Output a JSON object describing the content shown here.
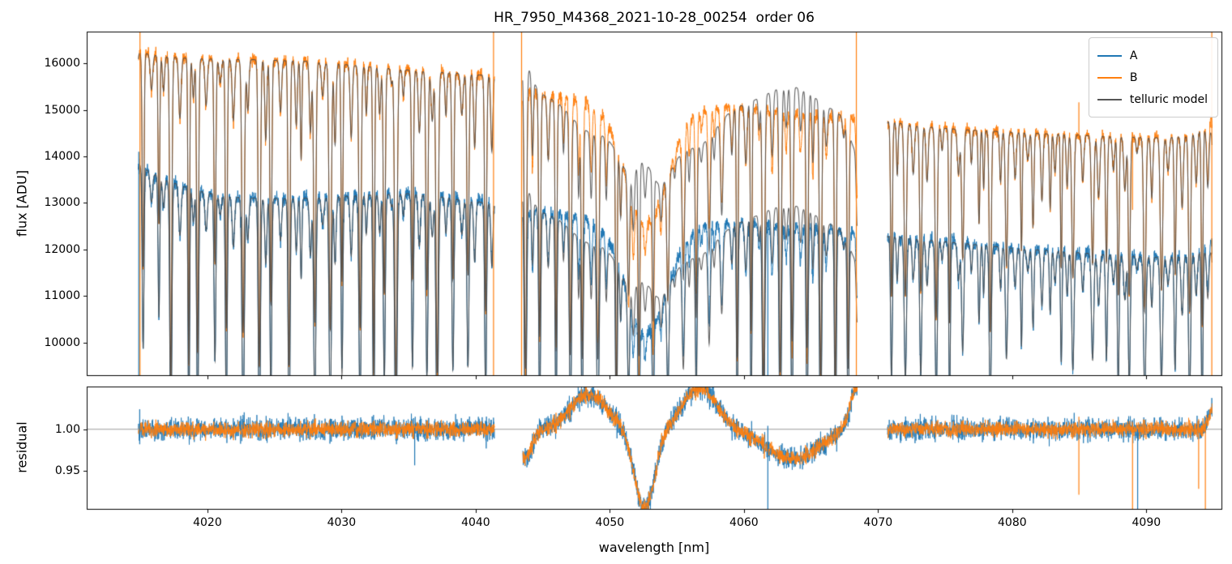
{
  "chart_data": {
    "type": "line",
    "title": "HR_7950_M4368_2021-10-28_00254  order 06",
    "xlabel": "wavelength [nm]",
    "ylabel_top": "flux [ADU]",
    "ylabel_bottom": "residual",
    "x_range": [
      4011.0,
      4095.6
    ],
    "top_ylim": [
      9300,
      16680
    ],
    "bottom_ylim": [
      0.905,
      1.051
    ],
    "x_ticks": [
      "4020",
      "4030",
      "4040",
      "4050",
      "4060",
      "4070",
      "4080",
      "4090"
    ],
    "top_yticks": [
      "10000",
      "11000",
      "12000",
      "13000",
      "14000",
      "15000",
      "16000"
    ],
    "bottom_yticks": [
      "0.95",
      "1.00"
    ],
    "legend": [
      {
        "label": "A",
        "color": "#1f77b4"
      },
      {
        "label": "B",
        "color": "#ff7f0e"
      },
      {
        "label": "telluric model",
        "color": "#555555"
      }
    ],
    "colors": {
      "a": "#1f77b4",
      "b": "#ff7f0e",
      "model": "#4d4d4d",
      "hline": "#9a9a9a"
    },
    "sample_step": 0.015,
    "segments": [
      {
        "x0": 4014.85,
        "x1": 4041.4
      },
      {
        "x0": 4043.5,
        "x1": 4068.45
      },
      {
        "x0": 4070.7,
        "x1": 4094.9
      }
    ],
    "continuum_b": [
      [
        4014.6,
        16250
      ],
      [
        4016.5,
        16150
      ],
      [
        4019,
        16100
      ],
      [
        4023,
        16080
      ],
      [
        4027,
        16050
      ],
      [
        4030,
        15980
      ],
      [
        4033,
        15900
      ],
      [
        4036,
        15830
      ],
      [
        4039,
        15780
      ],
      [
        4041.5,
        15720
      ],
      [
        4043.4,
        15420
      ],
      [
        4046,
        15280
      ],
      [
        4049,
        15170
      ],
      [
        4053,
        15020
      ],
      [
        4056,
        15020
      ],
      [
        4059,
        15070
      ],
      [
        4061.5,
        15020
      ],
      [
        4064,
        14940
      ],
      [
        4066.5,
        14860
      ],
      [
        4068.6,
        14800
      ],
      [
        4070.6,
        14760
      ],
      [
        4073,
        14650
      ],
      [
        4076,
        14580
      ],
      [
        4080,
        14520
      ],
      [
        4084,
        14470
      ],
      [
        4088,
        14420
      ],
      [
        4091,
        14400
      ],
      [
        4093,
        14430
      ],
      [
        4094.3,
        14600
      ],
      [
        4095.2,
        15050
      ]
    ],
    "continuum_a": [
      [
        4014.6,
        13900
      ],
      [
        4015.5,
        13700
      ],
      [
        4017,
        13480
      ],
      [
        4019,
        13280
      ],
      [
        4021,
        13160
      ],
      [
        4023,
        13100
      ],
      [
        4026,
        13090
      ],
      [
        4029,
        13120
      ],
      [
        4032,
        13170
      ],
      [
        4035,
        13200
      ],
      [
        4037,
        13150
      ],
      [
        4039,
        13060
      ],
      [
        4041.5,
        12980
      ],
      [
        4043.4,
        12850
      ],
      [
        4046,
        12760
      ],
      [
        4049,
        12680
      ],
      [
        4053,
        12560
      ],
      [
        4056,
        12530
      ],
      [
        4059,
        12560
      ],
      [
        4061.5,
        12560
      ],
      [
        4064,
        12480
      ],
      [
        4066.5,
        12400
      ],
      [
        4068.6,
        12350
      ],
      [
        4070.6,
        12300
      ],
      [
        4073,
        12220
      ],
      [
        4076,
        12140
      ],
      [
        4080,
        12030
      ],
      [
        4084,
        11950
      ],
      [
        4088,
        11870
      ],
      [
        4091,
        11830
      ],
      [
        4093,
        11850
      ],
      [
        4094.3,
        11980
      ],
      [
        4095.2,
        12400
      ]
    ],
    "dip": {
      "center": 4052.7,
      "sigma": 1.55,
      "depth_a": 0.187,
      "depth_b": 0.165
    },
    "comb": {
      "seed": 7,
      "start": 4013.2,
      "end": 4096.4,
      "spacing": 1.05,
      "jitter": 0.3,
      "w0": 0.055,
      "wj": 0.035,
      "regions": [
        {
          "x0": 4010.0,
          "x1": 4043.0,
          "dmin": 0.12,
          "dmax": 0.45
        },
        {
          "x0": 4043.0,
          "x1": 4051.0,
          "dmin": 0.2,
          "dmax": 0.42
        },
        {
          "x0": 4051.0,
          "x1": 4058.5,
          "dmin": 0.12,
          "dmax": 0.3
        },
        {
          "x0": 4058.5,
          "x1": 4070.0,
          "dmin": 0.2,
          "dmax": 0.45
        },
        {
          "x0": 4070.0,
          "x1": 4097.0,
          "dmin": 0.1,
          "dmax": 0.3
        }
      ]
    },
    "residual_systematics": [
      {
        "c": 4043.7,
        "s": 0.5,
        "a": -0.035
      },
      {
        "c": 4048.4,
        "s": 1.3,
        "a": 0.042
      },
      {
        "c": 4052.6,
        "s": 0.75,
        "a": -0.095
      },
      {
        "c": 4056.7,
        "s": 1.25,
        "a": 0.05
      },
      {
        "c": 4063.6,
        "s": 1.9,
        "a": -0.035
      },
      {
        "c": 4068.5,
        "s": 0.55,
        "a": 0.055
      },
      {
        "c": 4095.1,
        "s": 0.35,
        "a": 0.03
      }
    ],
    "noise": {
      "seed_a": 101,
      "seed_b": 202,
      "sigma_a": 0.006,
      "sigma_b": 0.0042
    },
    "spikes": {
      "top": [
        {
          "x": 4014.88,
          "series": "A",
          "y0": "min",
          "y1": 14100
        },
        {
          "x": 4014.97,
          "series": "B",
          "y0": "min",
          "y1": "max"
        },
        {
          "x": 4041.33,
          "series": "B",
          "y0": "min",
          "y1": "max"
        },
        {
          "x": 4043.42,
          "series": "B",
          "y0": "min",
          "y1": "max"
        },
        {
          "x": 4068.38,
          "series": "B",
          "y0": "min",
          "y1": "max"
        },
        {
          "x": 4094.88,
          "series": "B",
          "y0": "min",
          "y1": "max"
        },
        {
          "x": 4061.78,
          "series": "A",
          "y0": "min",
          "y1": 12450
        },
        {
          "x": 4084.97,
          "series": "B",
          "y0": 14380,
          "y1": 15160
        },
        {
          "x": 4088.97,
          "series": "B",
          "y0": 12850,
          "y1": 14400
        }
      ],
      "bottom": [
        {
          "x": 4014.95,
          "series": "A",
          "y0": 0.982,
          "y1": 1.024
        },
        {
          "x": 4035.45,
          "series": "A",
          "y0": 0.957,
          "y1": 1.002
        },
        {
          "x": 4061.78,
          "series": "A",
          "y0": "min",
          "y1": 1.004
        },
        {
          "x": 4084.97,
          "series": "B",
          "y0": 0.922,
          "y1": 1.015
        },
        {
          "x": 4088.97,
          "series": "B",
          "y0": "min",
          "y1": 1.004
        },
        {
          "x": 4089.35,
          "series": "A",
          "y0": "min",
          "y1": 1.0
        },
        {
          "x": 4093.9,
          "series": "B",
          "y0": 0.929,
          "y1": 1.012
        },
        {
          "x": 4094.4,
          "series": "B",
          "y0": "min",
          "y1": 1.01
        }
      ]
    }
  }
}
